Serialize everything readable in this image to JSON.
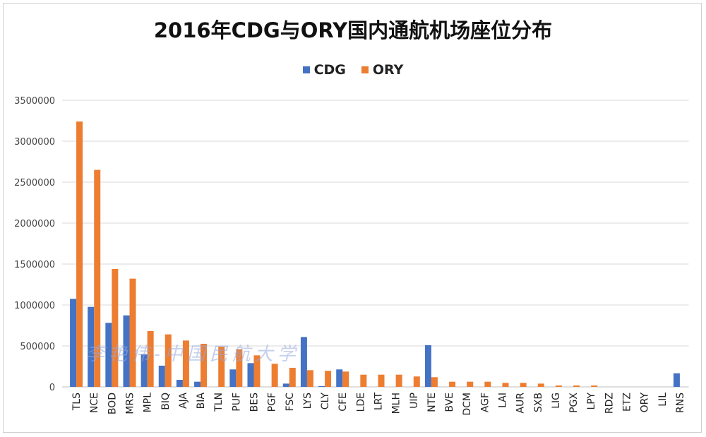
{
  "chart_data": {
    "type": "bar",
    "title": "2016年CDG与ORY国内通航机场座位分布",
    "xlabel": "",
    "ylabel": "",
    "ylim": [
      0,
      3500000
    ],
    "yticks": [
      0,
      500000,
      1000000,
      1500000,
      2000000,
      2500000,
      3000000,
      3500000
    ],
    "grid": true,
    "legend_position": "top",
    "categories": [
      "TLS",
      "NCE",
      "BOD",
      "MRS",
      "MPL",
      "BIQ",
      "AJA",
      "BIA",
      "TLN",
      "PUF",
      "BES",
      "PGF",
      "FSC",
      "LYS",
      "CLY",
      "CFE",
      "LDE",
      "LRT",
      "MLH",
      "UIP",
      "NTE",
      "BVE",
      "DCM",
      "AGF",
      "LAI",
      "AUR",
      "SXB",
      "LIG",
      "PGX",
      "LPY",
      "RDZ",
      "ETZ",
      "ORY",
      "LIL",
      "RNS"
    ],
    "series": [
      {
        "name": "CDG",
        "color": "#4472c4",
        "values": [
          1075000,
          977000,
          782000,
          873000,
          400000,
          259000,
          86000,
          63000,
          0,
          213000,
          290000,
          0,
          40000,
          609000,
          10000,
          213000,
          0,
          0,
          0,
          0,
          509000,
          0,
          0,
          0,
          0,
          0,
          0,
          0,
          0,
          0,
          0,
          0,
          0,
          0,
          166000
        ]
      },
      {
        "name": "ORY",
        "color": "#ed7d31",
        "values": [
          3240000,
          2650000,
          1440000,
          1322000,
          681000,
          641000,
          566000,
          526000,
          489000,
          460000,
          385000,
          282000,
          233000,
          204000,
          196000,
          187000,
          149000,
          149000,
          149000,
          127000,
          118000,
          63000,
          63000,
          63000,
          49000,
          49000,
          40000,
          17000,
          17000,
          17000,
          0,
          0,
          0,
          0,
          0
        ]
      }
    ]
  },
  "watermark": "李艳伟-中国民航大学"
}
